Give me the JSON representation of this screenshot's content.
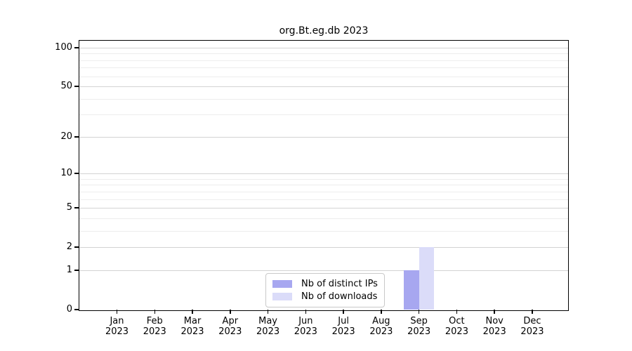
{
  "chart_data": {
    "type": "bar",
    "title": "org.Bt.eg.db 2023",
    "months": [
      "Jan",
      "Feb",
      "Mar",
      "Apr",
      "May",
      "Jun",
      "Jul",
      "Aug",
      "Sep",
      "Oct",
      "Nov",
      "Dec"
    ],
    "year_label": "2023",
    "series": [
      {
        "name": "Nb of distinct IPs",
        "color": "#a7a7f0",
        "values": [
          0,
          0,
          0,
          0,
          0,
          0,
          0,
          0,
          1,
          0,
          0,
          0
        ]
      },
      {
        "name": "Nb of downloads",
        "color": "#dbdcf9",
        "values": [
          0,
          0,
          0,
          0,
          0,
          0,
          0,
          0,
          2,
          0,
          0,
          0
        ]
      }
    ],
    "y_scale": "log1p",
    "ylim": [
      0,
      100
    ],
    "y_ticks": [
      0,
      1,
      2,
      5,
      10,
      20,
      50,
      100
    ],
    "y_minor_ticks": [
      3,
      4,
      6,
      7,
      8,
      9,
      30,
      40,
      60,
      70,
      80,
      90
    ],
    "grid": "horizontal",
    "legend_position": "lower-center-inside",
    "xlabel": "",
    "ylabel": ""
  }
}
